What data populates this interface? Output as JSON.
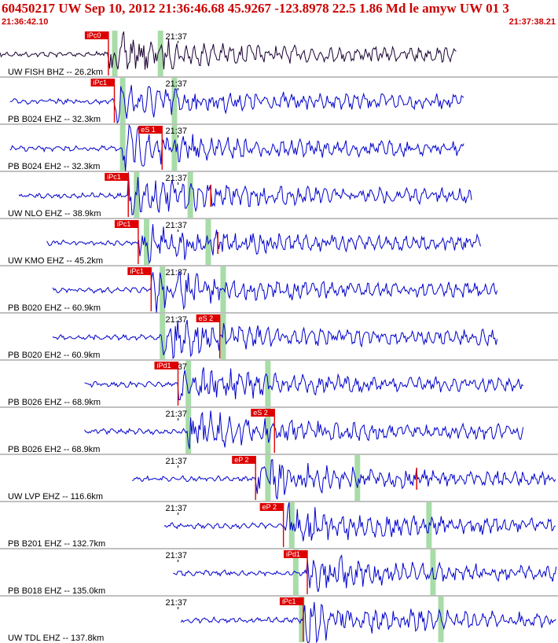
{
  "header": {
    "title": "60450217 UW Sep 10, 2012 21:36:46.68   45.9267 -123.8978 22.5 1.86 Md le amyw UW 01   3",
    "start_time": "21:36:42.10",
    "end_time": "21:37:38.21"
  },
  "colors": {
    "header_text": "#cc0000",
    "trace": "#0000cc",
    "first_trace": "#1a0033",
    "pick": "#dd0000",
    "window": "#a8dca8",
    "divider": "#808080"
  },
  "chart_data": {
    "type": "line",
    "title": "60450217 UW Sep 10, 2012 21:36:46.68   45.9267 -123.8978 22.5 1.86 Md le amyw UW 01   3",
    "x_range": [
      "21:36:42.10",
      "21:37:38.21"
    ],
    "x_tick_label": "21:37",
    "x_tick_seconds": 60,
    "series": [
      {
        "name": "UW FISH BHZ -- 26.2km",
        "start": 42.1,
        "end": 88.0,
        "pick": "iPc0",
        "pick_t": 53.0,
        "onset": 53.0,
        "s_pick": null,
        "s_t": null,
        "windows": [
          53.6,
          58.2
        ]
      },
      {
        "name": "PB B024 EHZ -- 32.3km",
        "start": 43.1,
        "end": 88.8,
        "pick": "iPc1",
        "pick_t": 53.6,
        "onset": 53.6,
        "s_pick": null,
        "s_t": null,
        "windows": [
          54.4,
          59.6
        ]
      },
      {
        "name": "PB B024 EH2 -- 32.3km",
        "start": 43.1,
        "end": 88.8,
        "pick": "eS 1",
        "pick_t": 58.4,
        "onset": 54.4,
        "s_pick": null,
        "s_t": null,
        "windows": [
          54.4,
          59.6
        ]
      },
      {
        "name": "UW NLO EHZ -- 38.9km",
        "start": 44.0,
        "end": 89.6,
        "pick": "iPc1",
        "pick_t": 55.0,
        "onset": 55.0,
        "s_pick": "S",
        "s_t": 63.3,
        "windows": [
          55.8,
          61.2
        ]
      },
      {
        "name": "UW KMO EHZ -- 45.2km",
        "start": 46.8,
        "end": 90.5,
        "pick": "iPc1",
        "pick_t": 56.0,
        "onset": 56.0,
        "s_pick": "S",
        "s_t": 64.0,
        "windows": [
          56.8,
          63.0
        ]
      },
      {
        "name": "PB B020 EHZ -- 60.9km",
        "start": 47.4,
        "end": 92.2,
        "pick": "iPc1",
        "pick_t": 57.3,
        "onset": 57.3,
        "s_pick": null,
        "s_t": null,
        "windows": [
          58.4,
          64.5
        ]
      },
      {
        "name": "PB B020 EH2 -- 60.9km",
        "start": 47.4,
        "end": 92.2,
        "pick": "eS 2",
        "pick_t": 64.2,
        "onset": 58.4,
        "s_pick": null,
        "s_t": null,
        "windows": [
          58.4,
          64.5
        ]
      },
      {
        "name": "PB B026 EHZ -- 68.9km",
        "start": 50.6,
        "end": 94.7,
        "pick": "iPd1",
        "pick_t": 60.0,
        "onset": 60.0,
        "s_pick": null,
        "s_t": null,
        "windows": [
          61.0,
          69.0
        ]
      },
      {
        "name": "PB B026 EH2 -- 68.9km",
        "start": 50.6,
        "end": 94.7,
        "pick": "eS 2",
        "pick_t": 69.7,
        "onset": 61.0,
        "s_pick": null,
        "s_t": null,
        "windows": [
          61.0,
          69.0
        ]
      },
      {
        "name": "UW LVP EHZ -- 116.6km",
        "start": 55.4,
        "end": 108.7,
        "pick": "eP 2",
        "pick_t": 67.8,
        "onset": 67.8,
        "s_pick": "S",
        "s_t": 84.0,
        "windows": [
          69.0,
          78.0
        ]
      },
      {
        "name": "PB B201 EHZ -- 132.7km",
        "start": 58.6,
        "end": 113.6,
        "pick": "eP 2",
        "pick_t": 70.6,
        "onset": 70.6,
        "s_pick": null,
        "s_t": null,
        "windows": [
          71.4,
          85.2
        ]
      },
      {
        "name": "PB B018 EHZ -- 135.0km",
        "start": 59.5,
        "end": 114.0,
        "pick": "iPd1",
        "pick_t": 73.0,
        "onset": 73.0,
        "s_pick": null,
        "s_t": null,
        "windows": [
          71.8,
          85.6
        ]
      },
      {
        "name": "UW TDL EHZ -- 137.8km",
        "start": 60.3,
        "end": 114.3,
        "pick": "iPc1",
        "pick_t": 72.6,
        "onset": 72.6,
        "s_pick": null,
        "s_t": null,
        "windows": [
          72.4,
          86.4
        ]
      }
    ]
  }
}
